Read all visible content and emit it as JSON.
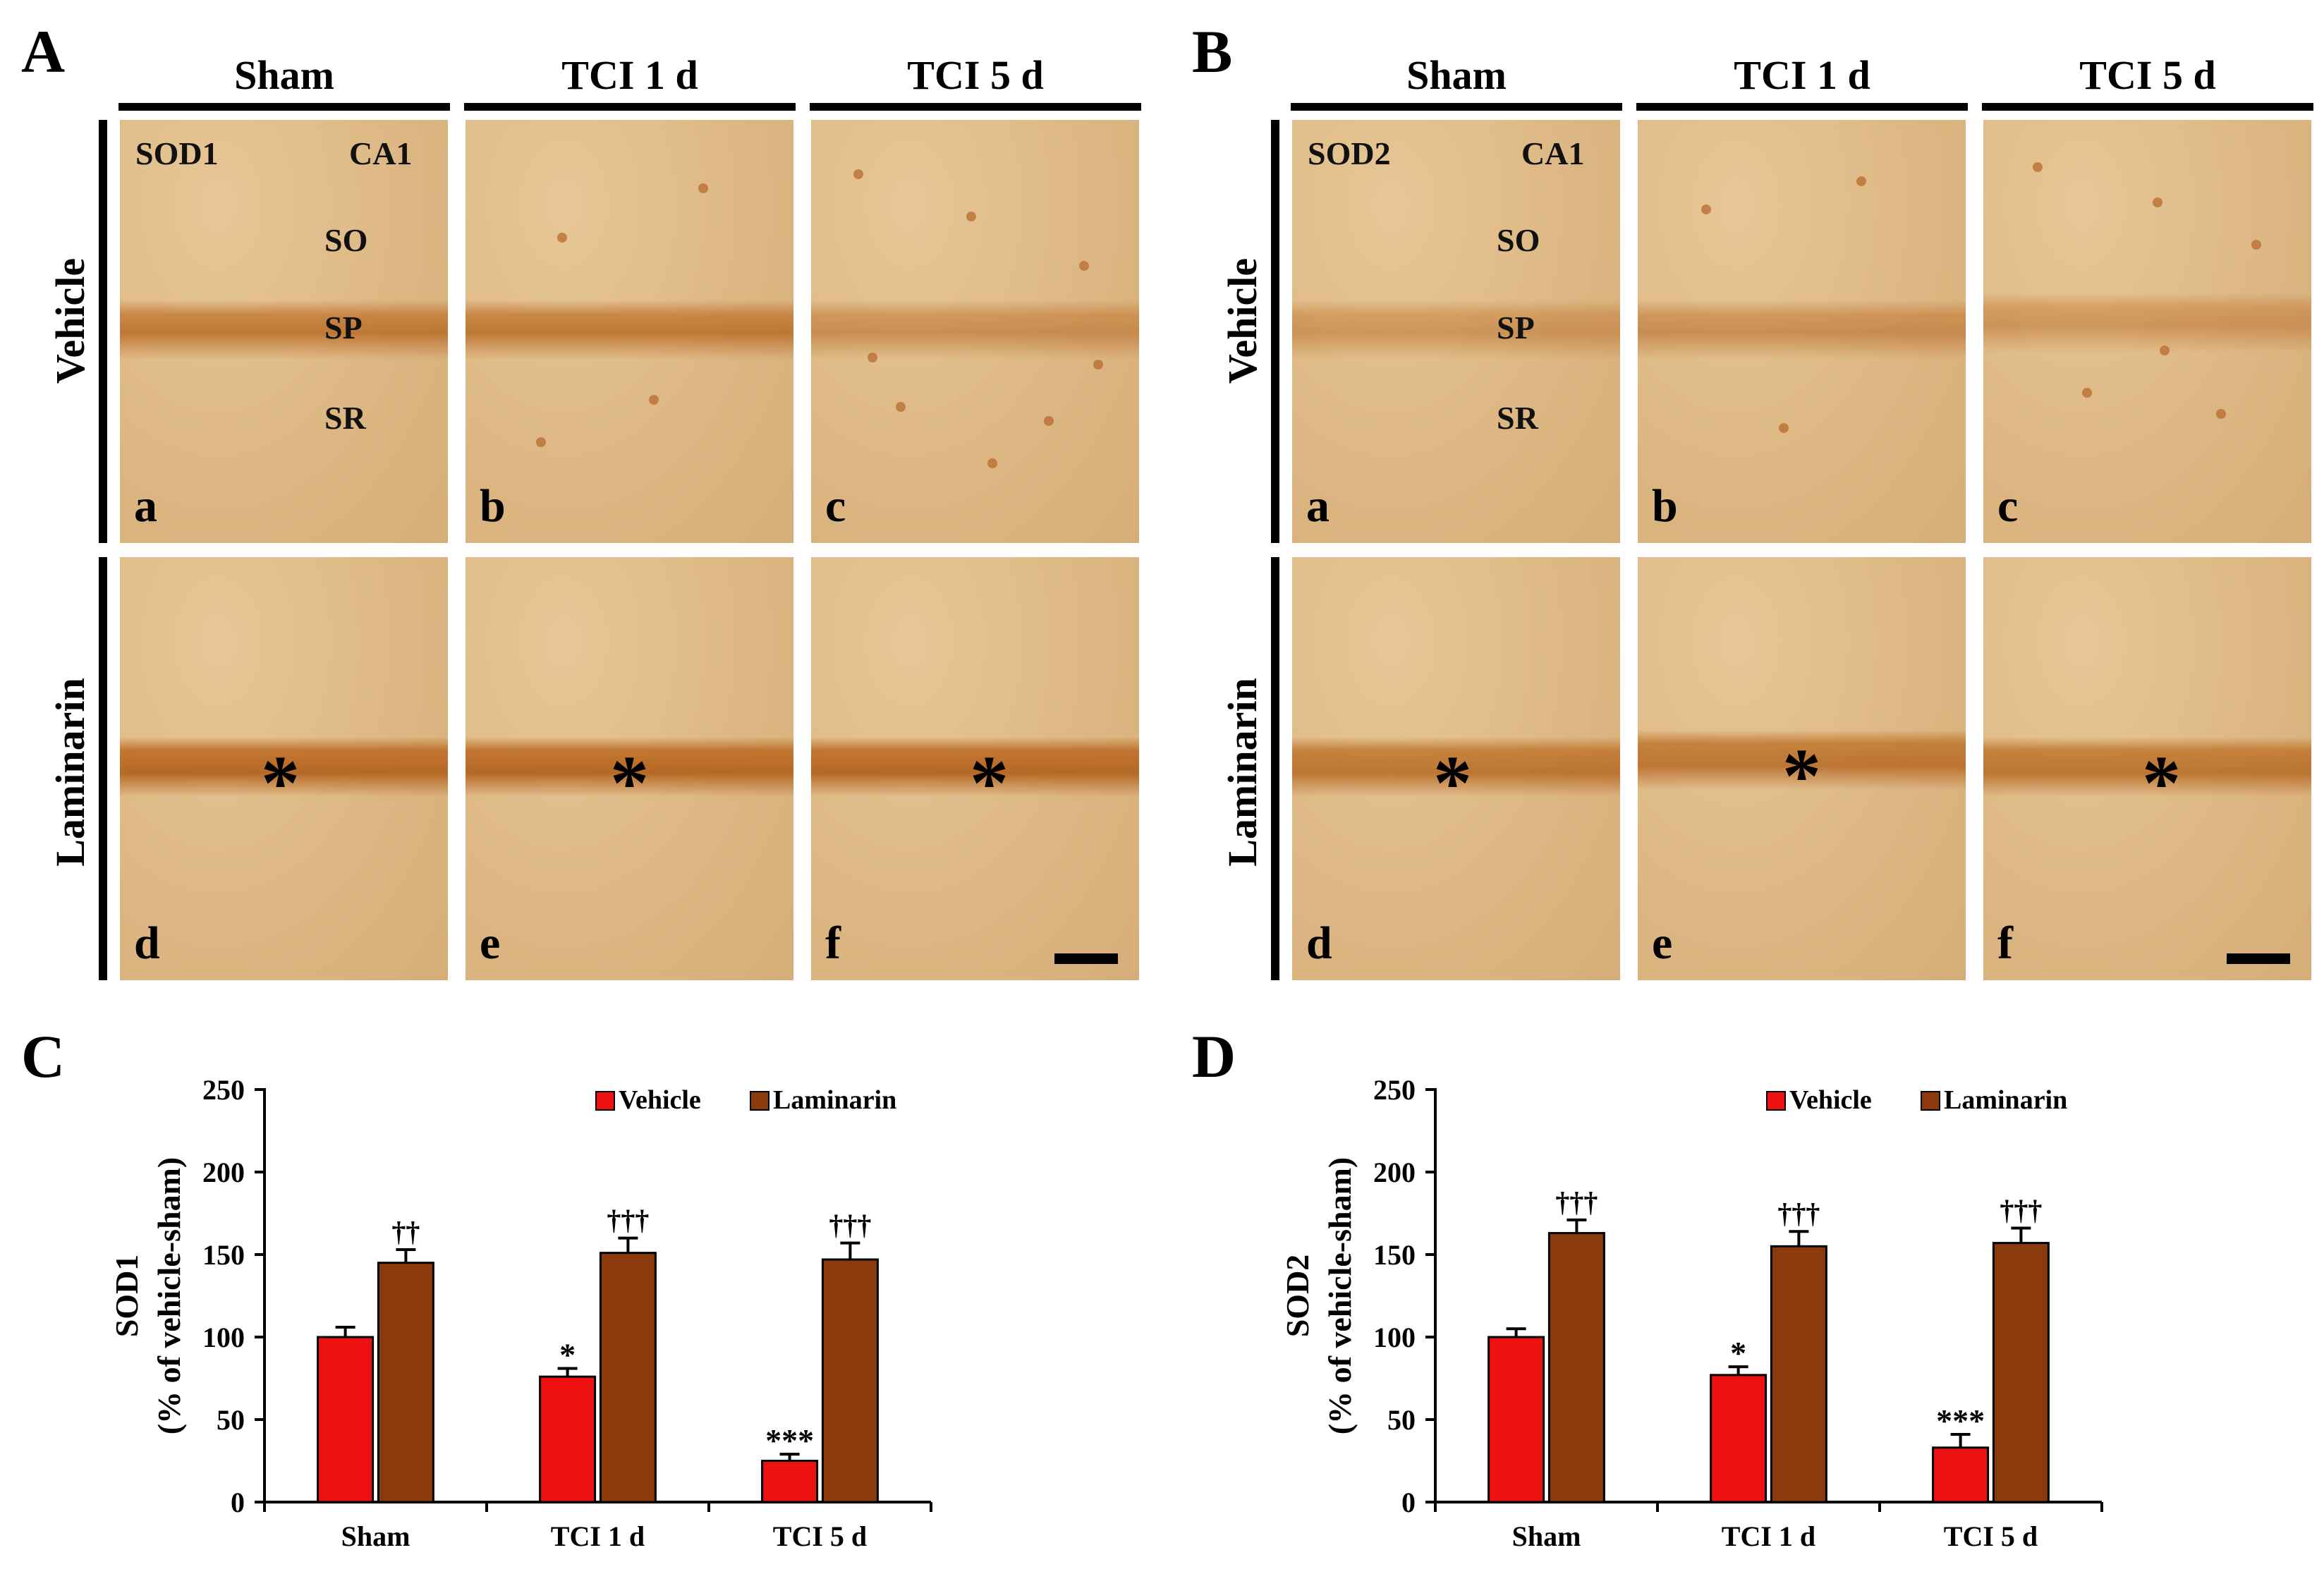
{
  "panels": {
    "A": {
      "letter": "A",
      "stain": "SOD1",
      "region": "CA1"
    },
    "B": {
      "letter": "B",
      "stain": "SOD2",
      "region": "CA1"
    },
    "C": {
      "letter": "C"
    },
    "D": {
      "letter": "D"
    }
  },
  "columns": [
    "Sham",
    "TCI 1 d",
    "TCI 5 d"
  ],
  "rows": [
    "Vehicle",
    "Laminarin"
  ],
  "layers": [
    "SO",
    "SP",
    "SR"
  ],
  "sublabels": [
    "a",
    "b",
    "c",
    "d",
    "e",
    "f"
  ],
  "asterisk": "*",
  "colors": {
    "vehicle": "#ee1111",
    "laminarin": "#8b3a0e",
    "tissue": "#dcb682"
  },
  "chart_data": [
    {
      "type": "bar",
      "panel": "C",
      "categories": [
        "Sham",
        "TCI 1 d",
        "TCI 5 d"
      ],
      "ylabel_line1": "SOD1",
      "ylabel_line2": "(% of vehicle-sham)",
      "ylim": [
        0,
        250
      ],
      "yticks": [
        "0",
        "50",
        "100",
        "150",
        "200",
        "250"
      ],
      "legend": [
        "Vehicle",
        "Laminarin"
      ],
      "series": [
        {
          "name": "Vehicle",
          "values": [
            100,
            76,
            25
          ],
          "errors": [
            6,
            5,
            4
          ],
          "annotations": [
            "",
            "*",
            "***"
          ]
        },
        {
          "name": "Laminarin",
          "values": [
            145,
            151,
            147
          ],
          "errors": [
            8,
            9,
            10
          ],
          "annotations": [
            "††",
            "†††",
            "†††"
          ]
        }
      ]
    },
    {
      "type": "bar",
      "panel": "D",
      "categories": [
        "Sham",
        "TCI 1 d",
        "TCI 5 d"
      ],
      "ylabel_line1": "SOD2",
      "ylabel_line2": "(% of vehicle-sham)",
      "ylim": [
        0,
        250
      ],
      "yticks": [
        "0",
        "50",
        "100",
        "150",
        "200",
        "250"
      ],
      "legend": [
        "Vehicle",
        "Laminarin"
      ],
      "series": [
        {
          "name": "Vehicle",
          "values": [
            100,
            77,
            33
          ],
          "errors": [
            5,
            5,
            8
          ],
          "annotations": [
            "",
            "*",
            "***"
          ]
        },
        {
          "name": "Laminarin",
          "values": [
            163,
            155,
            157
          ],
          "errors": [
            8,
            9,
            9
          ],
          "annotations": [
            "†††",
            "†††",
            "†††"
          ]
        }
      ]
    }
  ]
}
